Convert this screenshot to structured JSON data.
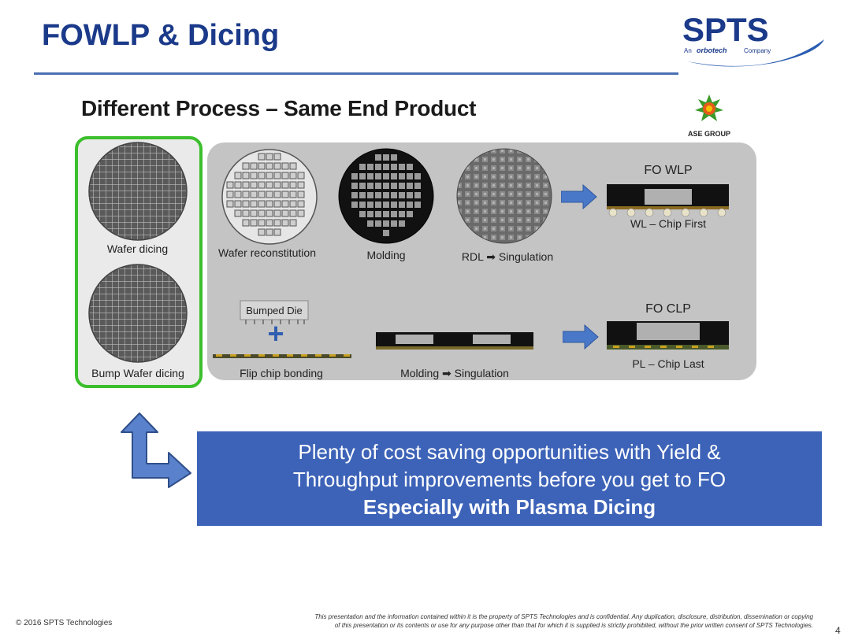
{
  "slide": {
    "title": "FOWLP & Dicing",
    "subtitle": "Different Process – Same End Product",
    "page_number": "4"
  },
  "logo": {
    "name": "SPTS",
    "tagline_prefix": "An",
    "tagline_brand": "orbotech",
    "tagline_suffix": "Company",
    "color": "#1b3a8a"
  },
  "ase_logo": {
    "label": "ASE GROUP"
  },
  "diagram": {
    "wafer_dicing": "Wafer dicing",
    "bump_wafer_dicing": "Bump Wafer dicing",
    "wafer_reconstitution": "Wafer reconstitution",
    "molding": "Molding",
    "rdl_singulation": "RDL ➡ Singulation",
    "fo_wlp": "FO WLP",
    "wl_chip_first": "WL – Chip First",
    "bumped_die": "Bumped Die",
    "plus": "+",
    "flip_chip_bonding": "Flip chip bonding",
    "molding_singulation": "Molding ➡ Singulation",
    "fo_clp": "FO CLP",
    "pl_chip_last": "PL – Chip Last"
  },
  "callout": {
    "line1": "Plenty of cost saving opportunities with Yield &",
    "line2": "Throughput improvements before you get to FO",
    "line3": "Especially with Plasma Dicing"
  },
  "footer": {
    "copyright": "© 2016 SPTS Technologies",
    "disclaimer_line1": "This presentation and the information contained within it is the property of SPTS Technologies and is confidential.  Any duplication, disclosure, distribution, dissemination or copying",
    "disclaimer_line2": "of this presentation or its contents or use for any purpose other than that for which it is supplied is strictly prohibited, without the prior written consent of SPTS Technologies."
  },
  "colors": {
    "title": "#1b3a8a",
    "callout_bg": "#3d63b8",
    "green_outline": "#3bbf2c",
    "arrow_blue": "#4a78c8"
  }
}
